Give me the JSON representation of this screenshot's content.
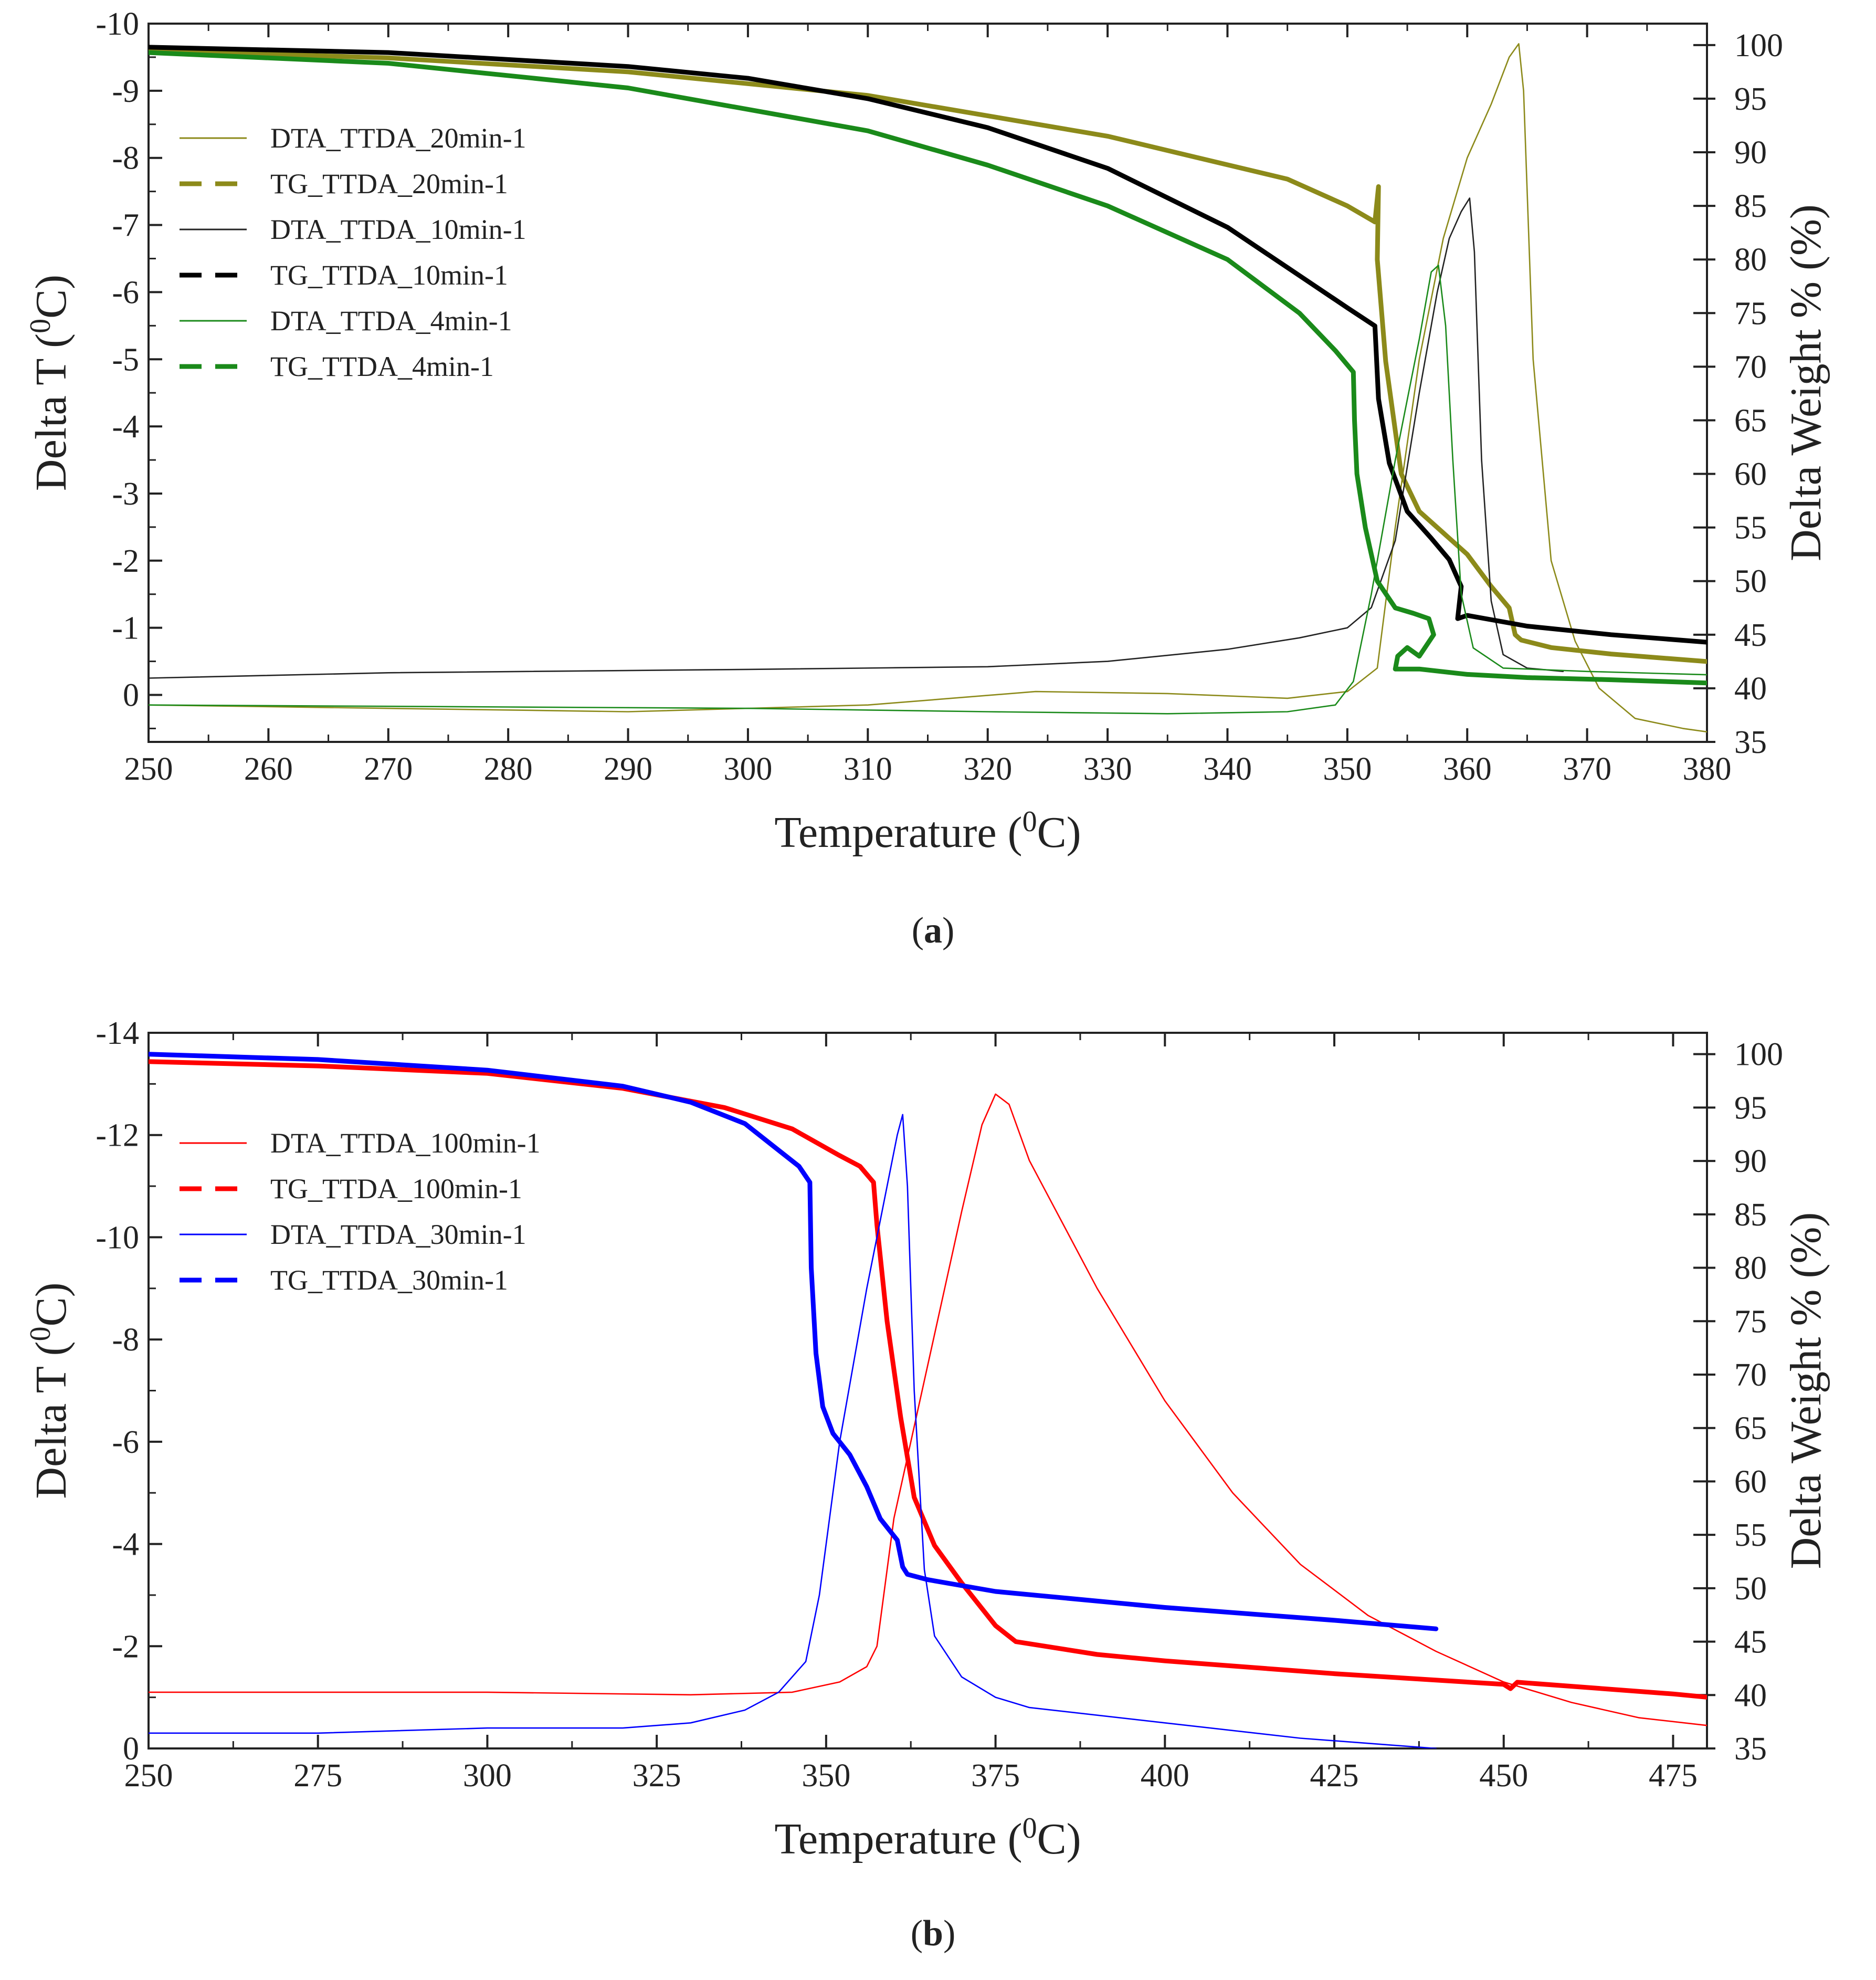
{
  "chart_data": [
    {
      "type": "line",
      "panel_label": {
        "open": "(",
        "letter": "a",
        "close": ")"
      },
      "xlabel": {
        "base": "Temperature (",
        "sup": "0",
        "tail": "C)"
      },
      "ylabel_left": {
        "base": "Delta T (",
        "sup": "0",
        "tail": "C)"
      },
      "ylabel_right": "Delta Weight % (%)",
      "xlim": [
        250,
        380
      ],
      "ylim_left": [
        0.7,
        -10
      ],
      "ylim_right": [
        35,
        102
      ],
      "x_ticks": [
        "250",
        "260",
        "270",
        "280",
        "290",
        "300",
        "310",
        "320",
        "330",
        "340",
        "350",
        "360",
        "370",
        "380"
      ],
      "y_left_ticks": [
        "-10",
        "-9",
        "-8",
        "-7",
        "-6",
        "-5",
        "-4",
        "-3",
        "-2",
        "-1",
        "0"
      ],
      "y_right_ticks": [
        "35",
        "40",
        "45",
        "50",
        "55",
        "60",
        "65",
        "70",
        "75",
        "80",
        "85",
        "90",
        "95",
        "100"
      ],
      "legend_position": "top-left",
      "series": [
        {
          "name": "DTA_TTDA_20min-1",
          "axis": "left",
          "style": "thin",
          "color": "#8c8a1a",
          "x": [
            250,
            290,
            310,
            324,
            335,
            345,
            350,
            352.5,
            354,
            356,
            358,
            360,
            362,
            363.5,
            364.3,
            364.7,
            365.5,
            367,
            369,
            371,
            374,
            378,
            380
          ],
          "y": [
            0.15,
            0.25,
            0.15,
            -0.05,
            -0.02,
            0.05,
            -0.05,
            -0.4,
            -2.5,
            -5.0,
            -6.8,
            -8.0,
            -8.8,
            -9.5,
            -9.7,
            -9.0,
            -5.0,
            -2.0,
            -0.8,
            -0.1,
            0.35,
            0.5,
            0.55
          ]
        },
        {
          "name": "TG_TTDA_20min-1",
          "axis": "right",
          "style": "thick",
          "color": "#8c8a1a",
          "x": [
            250,
            270,
            290,
            310,
            330,
            345,
            350,
            352.3,
            352.6,
            352.5,
            353.2,
            354.5,
            356,
            358,
            360,
            362,
            363.5,
            364.0,
            364.5,
            367,
            372,
            380
          ],
          "y": [
            99.5,
            98.8,
            97.5,
            95.3,
            91.5,
            87.5,
            85.0,
            83.5,
            86.8,
            80.0,
            70.5,
            60.0,
            56.5,
            54.5,
            52.5,
            49.5,
            47.5,
            45.0,
            44.5,
            43.8,
            43.2,
            42.5
          ]
        },
        {
          "name": "DTA_TTDA_10min-1",
          "axis": "left",
          "style": "thin",
          "color": "#222222",
          "x": [
            250,
            270,
            300,
            320,
            330,
            340,
            346,
            350,
            352,
            354,
            356,
            357.5,
            358.5,
            359.5,
            360.2,
            360.6,
            361.2,
            362,
            363,
            365,
            368
          ],
          "y": [
            -0.25,
            -0.33,
            -0.38,
            -0.42,
            -0.5,
            -0.68,
            -0.85,
            -1.0,
            -1.3,
            -2.3,
            -4.5,
            -6.0,
            -6.8,
            -7.2,
            -7.4,
            -6.6,
            -3.5,
            -1.4,
            -0.6,
            -0.4,
            -0.35
          ]
        },
        {
          "name": "TG_TTDA_10min-1",
          "axis": "right",
          "style": "thick",
          "color": "#000000",
          "x": [
            250,
            270,
            290,
            300,
            310,
            320,
            330,
            340,
            346,
            350,
            352.3,
            352.6,
            353.5,
            355,
            357,
            358.5,
            359.5,
            359.2,
            360,
            365,
            372,
            380
          ],
          "y": [
            99.8,
            99.3,
            98.0,
            96.9,
            95.0,
            92.3,
            88.5,
            83.0,
            78.5,
            75.5,
            73.8,
            67.0,
            61.0,
            56.5,
            54.0,
            52.0,
            49.5,
            46.5,
            46.8,
            45.8,
            45.0,
            44.3
          ]
        },
        {
          "name": "DTA_TTDA_4min-1",
          "axis": "left",
          "style": "thin",
          "color": "#1a8a1a",
          "x": [
            250,
            280,
            300,
            320,
            335,
            345,
            349,
            350.5,
            352,
            354,
            356,
            357,
            357.6,
            358.2,
            358.8,
            359.5,
            360.5,
            363,
            370,
            380
          ],
          "y": [
            0.15,
            0.18,
            0.2,
            0.25,
            0.28,
            0.25,
            0.15,
            -0.2,
            -1.5,
            -3.5,
            -5.3,
            -6.3,
            -6.4,
            -5.5,
            -3.5,
            -1.5,
            -0.7,
            -0.4,
            -0.35,
            -0.3
          ]
        },
        {
          "name": "TG_TTDA_4min-1",
          "axis": "right",
          "style": "thick",
          "color": "#1a8a1a",
          "x": [
            250,
            270,
            290,
            310,
            320,
            330,
            340,
            346,
            349,
            350.5,
            350.6,
            350.8,
            351.5,
            352.5,
            354,
            355.5,
            356.8,
            357.2,
            356.0,
            355.0,
            354.2,
            354.0,
            356,
            360,
            365,
            372,
            380
          ],
          "y": [
            99.3,
            98.3,
            96.0,
            92.0,
            88.8,
            85.0,
            80.0,
            75.0,
            71.5,
            69.5,
            65.0,
            60.0,
            55.0,
            50.0,
            47.5,
            47.0,
            46.5,
            45.0,
            43.0,
            43.8,
            43.0,
            41.8,
            41.8,
            41.3,
            41.0,
            40.8,
            40.5
          ]
        }
      ]
    },
    {
      "type": "line",
      "panel_label": {
        "open": "(",
        "letter": "b",
        "close": ")"
      },
      "xlabel": {
        "base": "Temperature (",
        "sup": "0",
        "tail": "C)"
      },
      "ylabel_left": {
        "base": "Delta T (",
        "sup": "0",
        "tail": "C)"
      },
      "ylabel_right": "Delta Weight % (%)",
      "xlim": [
        250,
        480
      ],
      "ylim_left": [
        0,
        -14
      ],
      "ylim_right": [
        35,
        102
      ],
      "x_ticks": [
        "250",
        "275",
        "300",
        "325",
        "350",
        "375",
        "400",
        "425",
        "450",
        "475"
      ],
      "y_left_ticks": [
        "-14",
        "-12",
        "-10",
        "-8",
        "-6",
        "-4",
        "-2",
        "0"
      ],
      "y_right_ticks": [
        "35",
        "40",
        "45",
        "50",
        "55",
        "60",
        "65",
        "70",
        "75",
        "80",
        "85",
        "90",
        "95",
        "100"
      ],
      "legend_position": "top-left",
      "series": [
        {
          "name": "DTA_TTDA_100min-1",
          "axis": "left",
          "style": "thin",
          "color": "#ff0000",
          "x": [
            250,
            300,
            330,
            345,
            352,
            356,
            357.5,
            360,
            365,
            370,
            373,
            375,
            377,
            380,
            390,
            400,
            410,
            420,
            430,
            440,
            450,
            460,
            470,
            480
          ],
          "y": [
            -1.1,
            -1.1,
            -1.05,
            -1.1,
            -1.3,
            -1.6,
            -2.0,
            -4.5,
            -7.5,
            -10.5,
            -12.2,
            -12.8,
            -12.6,
            -11.5,
            -9.0,
            -6.8,
            -5.0,
            -3.6,
            -2.6,
            -1.9,
            -1.3,
            -0.9,
            -0.6,
            -0.45
          ]
        },
        {
          "name": "TG_TTDA_100min-1",
          "axis": "right",
          "style": "thick",
          "color": "#ff0000",
          "x": [
            250,
            275,
            300,
            320,
            335,
            345,
            352,
            355,
            357,
            357.5,
            359,
            361,
            363,
            366,
            370,
            375,
            378,
            390,
            400,
            425,
            450,
            451,
            452,
            475,
            480
          ],
          "y": [
            99.3,
            98.9,
            98.2,
            96.8,
            95.0,
            93.0,
            90.5,
            89.5,
            88.0,
            84.0,
            75.0,
            66.0,
            58.5,
            54.0,
            50.5,
            46.5,
            45.0,
            43.8,
            43.2,
            42.0,
            41.0,
            40.6,
            41.2,
            40.1,
            39.8
          ]
        },
        {
          "name": "DTA_TTDA_30min-1",
          "axis": "left",
          "style": "thin",
          "color": "#0000ff",
          "x": [
            250,
            275,
            300,
            320,
            330,
            338,
            343,
            347,
            349,
            352,
            356,
            359,
            360.5,
            361.3,
            362,
            363,
            364.5,
            366,
            370,
            375,
            380,
            400,
            420,
            440
          ],
          "y": [
            -0.3,
            -0.3,
            -0.4,
            -0.4,
            -0.5,
            -0.75,
            -1.1,
            -1.7,
            -3.0,
            -6.0,
            -9.0,
            -11.0,
            -12.0,
            -12.4,
            -11.0,
            -7.0,
            -3.5,
            -2.2,
            -1.4,
            -1.0,
            -0.8,
            -0.5,
            -0.2,
            0.0
          ]
        },
        {
          "name": "TG_TTDA_30min-1",
          "axis": "right",
          "style": "thick",
          "color": "#0000ff",
          "x": [
            250,
            275,
            300,
            320,
            330,
            338,
            343,
            346,
            347.6,
            347.8,
            348.5,
            349.5,
            351,
            353.5,
            356,
            358,
            360.5,
            361.3,
            362,
            365,
            375,
            400,
            425,
            440
          ],
          "y": [
            100.0,
            99.5,
            98.5,
            97.0,
            95.5,
            93.5,
            91.0,
            89.5,
            88.0,
            80.0,
            72.0,
            67.0,
            64.5,
            62.5,
            59.5,
            56.5,
            54.5,
            52.0,
            51.3,
            50.8,
            49.7,
            48.2,
            47.0,
            46.2
          ]
        }
      ]
    }
  ]
}
